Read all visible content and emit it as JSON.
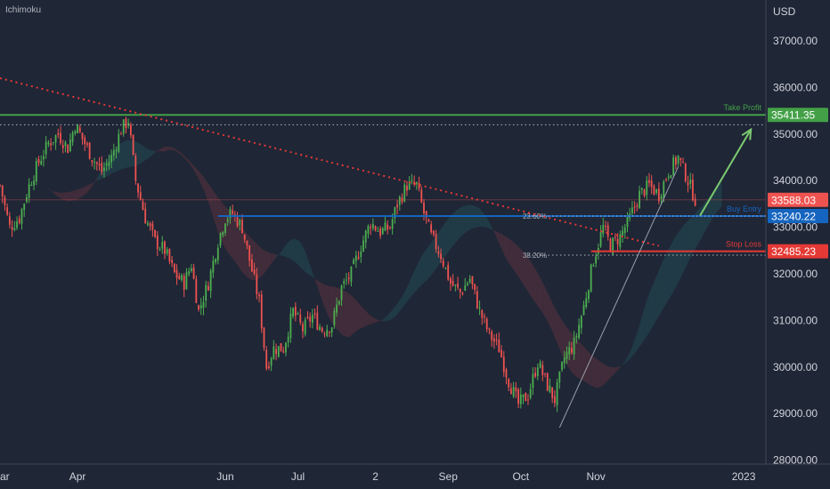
{
  "indicator": "Ichimoku",
  "colors": {
    "background": "#1f2636",
    "up": "#26a69a",
    "up_candle": "#4caf50",
    "down": "#ef5350",
    "take_profit": "#43a047",
    "buy_entry": "#1565c0",
    "stop_loss": "#e53935",
    "trend": "#e53935",
    "grid_text": "#b2b5be"
  },
  "chart_data": {
    "type": "candlestick",
    "y_axis": {
      "unit": "USD",
      "range": [
        27900,
        38000
      ],
      "ticks": [
        "37000.00",
        "36000.00",
        "35000.00",
        "34000.00",
        "33000.00",
        "32000.00",
        "31000.00",
        "30000.00",
        "29000.00",
        "28000.00"
      ]
    },
    "x_axis": {
      "range_days": [
        0,
        355
      ],
      "ticks": [
        {
          "label": "ar",
          "day": 0
        },
        {
          "label": "Apr",
          "day": 32
        },
        {
          "label": "Jun",
          "day": 93
        },
        {
          "label": "Jul",
          "day": 123
        },
        {
          "label": "2",
          "day": 155
        },
        {
          "label": "Sep",
          "day": 185
        },
        {
          "label": "Oct",
          "day": 215
        },
        {
          "label": "Nov",
          "day": 246
        },
        {
          "label": "2023",
          "day": 307
        }
      ]
    },
    "levels": [
      {
        "name": "Take Profit",
        "value": 35411.35,
        "label": "35411.35",
        "color": "#43a047",
        "style": "solid"
      },
      {
        "name": "Buy Entry",
        "value": 33240.22,
        "label": "33240.22",
        "color": "#1565c0",
        "style": "solid"
      },
      {
        "name": "Stop Loss",
        "value": 32485.23,
        "label": "32485.23",
        "color": "#e53935",
        "style": "solid"
      },
      {
        "name": "",
        "value": 33588.03,
        "label": "33588.03",
        "color": "#e53935",
        "style": "last"
      }
    ],
    "fib_levels": [
      {
        "label": "23.60%",
        "value": 33240
      },
      {
        "label": "38.20%",
        "value": 32400
      }
    ],
    "dotted_level": 35200,
    "trend_line": [
      {
        "day": 0,
        "value": 36200
      },
      {
        "day": 272,
        "value": 32600
      }
    ],
    "projection_arrow": [
      {
        "day": 289,
        "value": 33250
      },
      {
        "day": 310,
        "value": 35100
      }
    ],
    "swing_line": [
      {
        "day": 231,
        "value": 28700
      },
      {
        "day": 280,
        "value": 34300
      }
    ],
    "candle_points": [
      [
        0,
        33900
      ],
      [
        4,
        33000
      ],
      [
        8,
        33200
      ],
      [
        12,
        33900
      ],
      [
        16,
        34400
      ],
      [
        20,
        34800
      ],
      [
        24,
        35000
      ],
      [
        28,
        34700
      ],
      [
        31,
        35200
      ],
      [
        35,
        34800
      ],
      [
        38,
        34500
      ],
      [
        42,
        34200
      ],
      [
        46,
        34500
      ],
      [
        50,
        35100
      ],
      [
        53,
        35300
      ],
      [
        56,
        34000
      ],
      [
        60,
        33200
      ],
      [
        64,
        32700
      ],
      [
        68,
        32500
      ],
      [
        72,
        32000
      ],
      [
        76,
        31800
      ],
      [
        79,
        32200
      ],
      [
        82,
        31200
      ],
      [
        86,
        31800
      ],
      [
        90,
        32700
      ],
      [
        93,
        33200
      ],
      [
        96,
        33300
      ],
      [
        100,
        33000
      ],
      [
        103,
        32300
      ],
      [
        107,
        31400
      ],
      [
        110,
        30000
      ],
      [
        113,
        30400
      ],
      [
        117,
        30400
      ],
      [
        121,
        31200
      ],
      [
        125,
        30800
      ],
      [
        129,
        31100
      ],
      [
        133,
        30800
      ],
      [
        137,
        30900
      ],
      [
        141,
        31700
      ],
      [
        145,
        32000
      ],
      [
        149,
        32600
      ],
      [
        153,
        33100
      ],
      [
        157,
        32900
      ],
      [
        161,
        33000
      ],
      [
        164,
        33500
      ],
      [
        168,
        33900
      ],
      [
        172,
        33900
      ],
      [
        175,
        33300
      ],
      [
        178,
        32800
      ],
      [
        182,
        32400
      ],
      [
        186,
        31800
      ],
      [
        190,
        31600
      ],
      [
        194,
        31900
      ],
      [
        198,
        31200
      ],
      [
        202,
        30700
      ],
      [
        206,
        30400
      ],
      [
        210,
        29700
      ],
      [
        214,
        29200
      ],
      [
        218,
        29400
      ],
      [
        222,
        30100
      ],
      [
        226,
        29600
      ],
      [
        229,
        29300
      ],
      [
        233,
        30200
      ],
      [
        237,
        30500
      ],
      [
        241,
        31300
      ],
      [
        245,
        32300
      ],
      [
        249,
        33000
      ],
      [
        252,
        32600
      ],
      [
        256,
        32800
      ],
      [
        260,
        33200
      ],
      [
        264,
        33700
      ],
      [
        268,
        33900
      ],
      [
        272,
        33700
      ],
      [
        276,
        34200
      ],
      [
        280,
        34500
      ],
      [
        284,
        34000
      ],
      [
        287,
        33600
      ]
    ]
  }
}
